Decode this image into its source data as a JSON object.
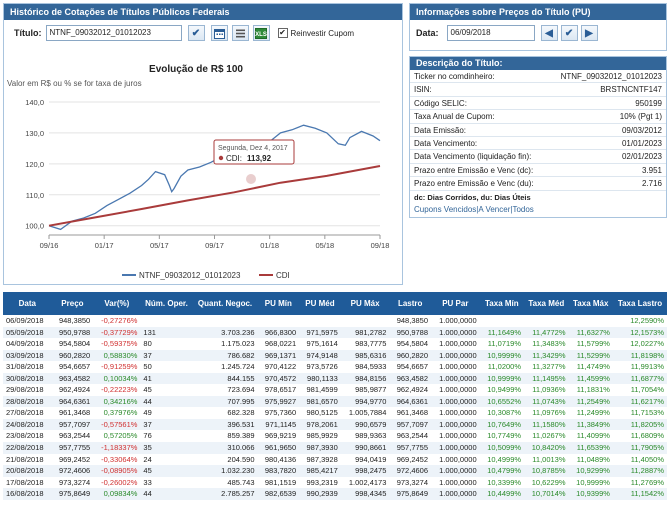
{
  "left_panel": {
    "title": "Histórico de Cotações de Títulos Públicos Federais",
    "titulo_label": "Título:",
    "titulo_value": "NTNF_09032012_01012023",
    "reinvest_label": "Reinvestir Cupom",
    "reinvest_checked": "✔"
  },
  "info_panel": {
    "title": "Informações sobre Preços do Título (PU)",
    "data_label": "Data:",
    "data_value": "06/09/2018"
  },
  "desc_panel": {
    "title": "Descrição do Título:",
    "rows": [
      {
        "label": "Ticker no comdinheiro:",
        "value": "NTNF_09032012_01012023"
      },
      {
        "label": "ISIN:",
        "value": "BRSTNCNTF147"
      },
      {
        "label": "Código SELIC:",
        "value": "950199"
      },
      {
        "label": "Taxa Anual de Cupom:",
        "value": "10% (Pgt 1)"
      },
      {
        "label": "Data Emissão:",
        "value": "09/03/2012"
      },
      {
        "label": "Data Vencimento:",
        "value": "01/01/2023"
      },
      {
        "label": "Data Vencimento (liquidação fin):",
        "value": "02/01/2023"
      },
      {
        "label": "Prazo entre Emissão e Venc (dc):",
        "value": "3.951"
      },
      {
        "label": "Prazo entre Emissão e Venc (du):",
        "value": "2.716"
      }
    ],
    "note": "dc: Dias Corridos, du: Dias Úteis",
    "links": [
      "Cupons Vencidos",
      "A Vencer",
      "Todos"
    ]
  },
  "chart_data": {
    "type": "line",
    "title": "Evolução de R$ 100",
    "subtitle": "Valor em R$ ou % se for taxa de juros",
    "xlabel": "",
    "ylabel": "",
    "ylim": [
      97,
      140
    ],
    "y_ticks": [
      "100,0",
      "110,0",
      "120,0",
      "130,0",
      "140,0"
    ],
    "x_ticks": [
      "09/16",
      "01/17",
      "05/17",
      "09/17",
      "01/18",
      "05/18",
      "09/18"
    ],
    "grid": true,
    "legend_position": "bottom",
    "tooltip": {
      "date": "Segunda, Dez 4, 2017",
      "series": "CDI:",
      "value": "113,92"
    },
    "series": [
      {
        "name": "NTNF_09032012_01012023",
        "color": "#4a78b0",
        "points": [
          [
            0,
            100
          ],
          [
            0.5,
            98.8
          ],
          [
            1,
            101.5
          ],
          [
            1.5,
            102.5
          ],
          [
            2,
            104
          ],
          [
            2.5,
            106.5
          ],
          [
            3,
            108.5
          ],
          [
            3.5,
            110.5
          ],
          [
            4,
            113
          ],
          [
            4.3,
            115
          ],
          [
            4.6,
            117.5
          ],
          [
            5,
            116.5
          ],
          [
            5.2,
            113
          ],
          [
            5.3,
            111
          ],
          [
            5.4,
            112
          ],
          [
            5.7,
            116
          ],
          [
            6,
            118
          ],
          [
            6.5,
            119
          ],
          [
            7,
            120.5
          ],
          [
            7.5,
            122.5
          ],
          [
            8,
            121.5
          ],
          [
            8.5,
            123.5
          ],
          [
            9,
            125.5
          ],
          [
            9.5,
            127
          ],
          [
            10,
            130
          ],
          [
            10.5,
            131
          ],
          [
            11,
            132.5
          ],
          [
            11.5,
            131.5
          ],
          [
            12,
            130
          ],
          [
            12.5,
            126.5
          ],
          [
            12.8,
            126
          ],
          [
            13,
            128.5
          ],
          [
            13.5,
            130.5
          ],
          [
            14,
            129
          ],
          [
            14.3,
            127.5
          ]
        ]
      },
      {
        "name": "CDI",
        "color": "#a93b3b",
        "points": [
          [
            0,
            100
          ],
          [
            2,
            102.7
          ],
          [
            4,
            105.4
          ],
          [
            6,
            108.2
          ],
          [
            8,
            110.8
          ],
          [
            10,
            113.9
          ],
          [
            12,
            116.1
          ],
          [
            14.3,
            119.3
          ]
        ]
      }
    ]
  },
  "table": {
    "headers": [
      "Data",
      "Preço",
      "Var(%)",
      "Núm. Oper.",
      "Quant. Negoc.",
      "PU Mín",
      "PU Méd",
      "PU Máx",
      "Lastro",
      "PU Par",
      "Taxa Mín",
      "Taxa Méd",
      "Taxa Máx",
      "Taxa Lastro"
    ],
    "rows": [
      [
        "06/09/2018",
        "948,3850",
        "-0,27276%",
        "",
        "",
        "",
        "",
        "",
        "948,3850",
        "1.000,0000",
        "",
        "",
        "",
        "12,2590%"
      ],
      [
        "05/09/2018",
        "950,9788",
        "-0,37729%",
        "131",
        "3.703.236",
        "966,8300",
        "971,5975",
        "981,2782",
        "950,9788",
        "1.000,0000",
        "11,1649%",
        "11,4772%",
        "11,6327%",
        "12,1573%"
      ],
      [
        "04/09/2018",
        "954,5804",
        "-0,59375%",
        "80",
        "1.175.023",
        "968,0221",
        "975,1614",
        "983,7775",
        "954,5804",
        "1.000,0000",
        "11,0719%",
        "11,3483%",
        "11,5799%",
        "12,0227%"
      ],
      [
        "03/09/2018",
        "960,2820",
        "0,58830%",
        "37",
        "786.682",
        "969,1371",
        "974,9148",
        "985,6316",
        "960,2820",
        "1.000,0000",
        "10,9999%",
        "11,3429%",
        "11,5299%",
        "11,8198%"
      ],
      [
        "31/08/2018",
        "954,6657",
        "-0,91259%",
        "50",
        "1.245.724",
        "970,4122",
        "973,5726",
        "984,5933",
        "954,6657",
        "1.000,0000",
        "11,0200%",
        "11,3277%",
        "11,4749%",
        "11,9913%"
      ],
      [
        "30/08/2018",
        "963,4582",
        "0,10034%",
        "41",
        "844.155",
        "970,4572",
        "980,1133",
        "984,8156",
        "963,4582",
        "1.000,0000",
        "10,9999%",
        "11,1495%",
        "11,4599%",
        "11,6877%"
      ],
      [
        "29/08/2018",
        "962,4924",
        "-0,22223%",
        "45",
        "723.694",
        "978,6517",
        "981,4599",
        "985,9877",
        "962,4924",
        "1.000,0000",
        "10,9499%",
        "11,0936%",
        "11,1831%",
        "11,7054%"
      ],
      [
        "28/08/2018",
        "964,6361",
        "0,34216%",
        "44",
        "707.995",
        "975,9927",
        "981,6570",
        "994,9770",
        "964,6361",
        "1.000,0000",
        "10,6552%",
        "11,0743%",
        "11,2549%",
        "11,6217%"
      ],
      [
        "27/08/2018",
        "961,3468",
        "0,37976%",
        "49",
        "682.328",
        "975,7360",
        "980,5125",
        "1.005,7884",
        "961,3468",
        "1.000,0000",
        "10,3087%",
        "11,0976%",
        "11,2499%",
        "11,7153%"
      ],
      [
        "24/08/2018",
        "957,7097",
        "-0,57561%",
        "37",
        "396.531",
        "971,1145",
        "978,2061",
        "990,6579",
        "957,7097",
        "1.000,0000",
        "10,7649%",
        "11,1580%",
        "11,3849%",
        "11,8205%"
      ],
      [
        "23/08/2018",
        "963,2544",
        "0,57205%",
        "76",
        "859.389",
        "969,9219",
        "985,9929",
        "989,9363",
        "963,2544",
        "1.000,0000",
        "10,7749%",
        "11,0267%",
        "11,4099%",
        "11,6809%"
      ],
      [
        "22/08/2018",
        "957,7755",
        "-1,18337%",
        "35",
        "310.066",
        "961,9650",
        "987,3930",
        "990,8661",
        "957,7755",
        "1.000,0000",
        "10,5099%",
        "10,8420%",
        "11,6539%",
        "11,7905%"
      ],
      [
        "21/08/2018",
        "969,2452",
        "-0,33064%",
        "24",
        "204.590",
        "980,4136",
        "987,3928",
        "994,0419",
        "969,2452",
        "1.000,0000",
        "10,4999%",
        "11,0013%",
        "11,0489%",
        "11,4050%"
      ],
      [
        "20/08/2018",
        "972,4606",
        "-0,08905%",
        "45",
        "1.032.230",
        "983,7820",
        "985,4217",
        "998,2475",
        "972,4606",
        "1.000,0000",
        "10,4799%",
        "10,8785%",
        "10,9299%",
        "11,2887%"
      ],
      [
        "17/08/2018",
        "973,3274",
        "-0,26002%",
        "33",
        "485.743",
        "981,1519",
        "993,2319",
        "1.002,4173",
        "973,3274",
        "1.000,0000",
        "10,3399%",
        "10,6229%",
        "10,9999%",
        "11,2769%"
      ],
      [
        "16/08/2018",
        "975,8649",
        "0,09834%",
        "44",
        "2.785.257",
        "982,6539",
        "990,2939",
        "998,4345",
        "975,8649",
        "1.000,0000",
        "10,4499%",
        "10,7014%",
        "10,9399%",
        "11,1542%"
      ]
    ]
  }
}
